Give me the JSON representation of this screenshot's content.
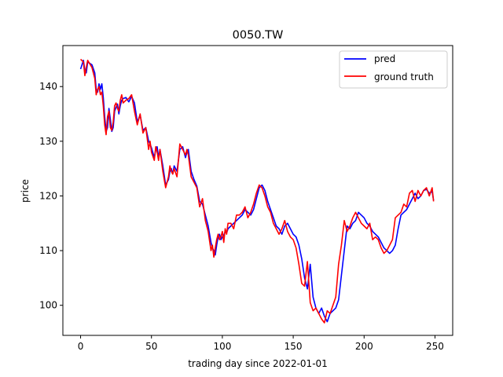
{
  "chart_data": {
    "type": "line",
    "title": "0050.TW",
    "xlabel": "trading day since 2022-01-01",
    "ylabel": "price",
    "xlim": [
      -12.5,
      262.5
    ],
    "ylim": [
      94.5,
      147.5
    ],
    "xticks": [
      0,
      50,
      100,
      150,
      200,
      250
    ],
    "yticks": [
      100,
      110,
      120,
      130,
      140
    ],
    "grid": false,
    "legend_position": "top-right",
    "x_anchors": [
      0,
      2,
      3,
      4,
      5,
      8,
      10,
      11,
      12,
      13,
      14,
      15,
      16,
      17,
      18,
      19,
      20,
      21,
      22,
      23,
      24,
      25,
      26,
      27,
      28,
      29,
      30,
      32,
      34,
      36,
      38,
      40,
      42,
      44,
      46,
      48,
      49,
      50,
      52,
      53,
      54,
      55,
      56,
      58,
      60,
      62,
      63,
      64,
      65,
      66,
      68,
      70,
      72,
      74,
      75,
      76,
      78,
      80,
      82,
      84,
      86,
      88,
      90,
      92,
      93,
      94,
      95,
      96,
      97,
      98,
      99,
      100,
      101,
      102,
      103,
      104,
      106,
      108,
      110,
      112,
      114,
      116,
      118,
      120,
      122,
      124,
      126,
      128,
      130,
      132,
      134,
      136,
      138,
      140,
      142,
      144,
      146,
      148,
      150,
      152,
      154,
      156,
      158,
      160,
      162,
      164,
      166,
      168,
      170,
      172,
      174,
      176,
      178,
      180,
      182,
      184,
      186,
      188,
      190,
      192,
      194,
      196,
      198,
      200,
      202,
      204,
      206,
      208,
      210,
      212,
      214,
      216,
      218,
      220,
      222,
      224,
      226,
      228,
      230,
      232,
      234,
      236,
      238,
      240,
      242,
      244,
      246,
      248,
      249
    ],
    "series": [
      {
        "name": "pred",
        "color": "#0000ff",
        "values": [
          143.2,
          144.8,
          143.0,
          142.5,
          144.5,
          144.0,
          142.5,
          139.5,
          139.0,
          140.5,
          139.5,
          140.5,
          138.0,
          134.5,
          131.8,
          132.5,
          136.0,
          134.0,
          131.8,
          132.5,
          135.5,
          136.2,
          136.8,
          135.0,
          136.5,
          137.5,
          137.8,
          138.0,
          137.2,
          138.2,
          137.0,
          133.5,
          134.8,
          132.0,
          132.5,
          130.0,
          129.5,
          128.8,
          127.0,
          128.5,
          129.0,
          127.0,
          128.5,
          125.5,
          122.0,
          123.0,
          124.5,
          125.0,
          124.0,
          125.5,
          124.5,
          128.5,
          129.0,
          127.0,
          128.0,
          128.5,
          124.5,
          123.0,
          121.8,
          119.0,
          118.5,
          116.5,
          114.5,
          111.5,
          110.5,
          110.0,
          109.2,
          111.0,
          112.5,
          113.0,
          112.0,
          112.5,
          112.8,
          113.5,
          113.2,
          114.0,
          114.5,
          115.0,
          115.5,
          116.0,
          116.5,
          117.5,
          117.0,
          116.5,
          117.5,
          119.5,
          121.5,
          122.0,
          121.0,
          119.0,
          117.5,
          116.0,
          114.5,
          114.0,
          113.0,
          114.5,
          115.0,
          114.0,
          113.0,
          112.5,
          111.0,
          108.5,
          105.0,
          103.0,
          107.5,
          101.5,
          99.5,
          98.5,
          99.5,
          98.0,
          97.0,
          98.5,
          99.0,
          99.5,
          101.0,
          105.5,
          110.0,
          114.5,
          114.0,
          115.0,
          115.5,
          117.0,
          116.5,
          116.0,
          115.0,
          114.5,
          113.5,
          113.0,
          112.5,
          111.5,
          110.5,
          110.0,
          109.5,
          110.0,
          111.0,
          114.0,
          116.5,
          117.0,
          117.5,
          118.5,
          119.5,
          120.5,
          119.5,
          120.0,
          121.0,
          121.2,
          120.5,
          120.8,
          119.2
        ]
      },
      {
        "name": "ground truth",
        "color": "#ff0000",
        "values": [
          145.0,
          144.5,
          142.0,
          143.5,
          144.8,
          143.5,
          141.5,
          138.5,
          139.5,
          140.0,
          138.5,
          139.0,
          136.5,
          133.0,
          131.2,
          134.5,
          135.5,
          132.5,
          132.0,
          133.5,
          136.5,
          137.0,
          136.0,
          135.5,
          137.5,
          138.5,
          137.0,
          137.5,
          137.8,
          138.5,
          135.5,
          133.0,
          135.0,
          131.5,
          132.5,
          128.5,
          130.0,
          128.0,
          126.5,
          129.0,
          128.0,
          126.5,
          128.5,
          124.5,
          121.5,
          123.5,
          125.5,
          124.5,
          124.0,
          125.0,
          123.5,
          129.5,
          128.5,
          127.5,
          128.5,
          127.5,
          123.5,
          122.5,
          121.5,
          118.0,
          119.5,
          115.5,
          113.5,
          110.0,
          111.0,
          108.8,
          110.5,
          112.0,
          113.0,
          112.0,
          112.5,
          113.5,
          111.5,
          114.0,
          113.0,
          115.0,
          115.0,
          114.0,
          116.5,
          116.5,
          117.0,
          118.0,
          116.0,
          117.0,
          118.5,
          120.5,
          122.0,
          121.5,
          120.0,
          118.0,
          117.0,
          115.0,
          114.0,
          113.0,
          114.0,
          115.5,
          113.5,
          112.5,
          112.0,
          110.5,
          107.5,
          104.0,
          103.5,
          108.0,
          100.5,
          99.0,
          99.5,
          98.5,
          97.5,
          96.8,
          99.0,
          98.5,
          100.0,
          101.5,
          107.5,
          111.0,
          115.5,
          113.5,
          114.5,
          116.0,
          117.0,
          116.0,
          115.0,
          114.5,
          114.0,
          115.0,
          112.0,
          112.5,
          112.0,
          110.5,
          109.5,
          110.0,
          111.0,
          112.0,
          116.0,
          116.5,
          117.0,
          118.5,
          118.0,
          120.5,
          121.0,
          119.0,
          121.0,
          120.0,
          121.0,
          121.5,
          120.0,
          121.5,
          119.0
        ]
      }
    ]
  }
}
